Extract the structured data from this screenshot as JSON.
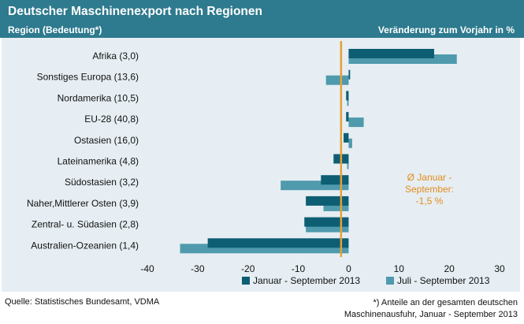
{
  "chart_data": {
    "type": "bar",
    "orientation": "horizontal",
    "title": "Deutscher Maschinenexport nach Regionen",
    "subtitle_left": "Region (Bedeutung*)",
    "subtitle_right": "Veränderung  zum Vorjahr in %",
    "categories": [
      "Afrika  (3,0)",
      "Sonstiges Europa  (13,6)",
      "Nordamerika  (10,5)",
      "EU-28  (40,8)",
      "Ostasien  (16,0)",
      "Lateinamerika  (4,8)",
      "Südostasien  (3,2)",
      "Naher,Mittlerer Osten  (3,9)",
      "Zentral- u. Südasien  (2,8)",
      "Australien-Ozeanien  (1,4)"
    ],
    "series": [
      {
        "name": "Januar - September 2013",
        "color": "#0e5e73",
        "values": [
          17.0,
          0.3,
          -0.5,
          -0.5,
          -1.0,
          -3.0,
          -5.5,
          -8.5,
          -8.8,
          -28.0
        ]
      },
      {
        "name": "Juli - September 2013",
        "color": "#4f9aac",
        "values": [
          21.5,
          -4.5,
          -0.3,
          3.0,
          0.7,
          -0.3,
          -13.5,
          -5.0,
          -8.5,
          -33.5
        ]
      }
    ],
    "xlim": [
      -40,
      30
    ],
    "xticks": [
      "-40",
      "-30",
      "-20",
      "-10",
      "0",
      "10",
      "20",
      "30"
    ],
    "reference_line": {
      "value": -1.5,
      "color": "#e8a033"
    },
    "annotation": [
      "Ø Januar -",
      "September:",
      "-1,5 %"
    ],
    "annotation_color": "#e38c1a",
    "legend": "bottom"
  },
  "source": "Quelle: Statistisches Bundesamt, VDMA",
  "footnote_line1": "*) Anteile an der gesamten deutschen",
  "footnote_line2": "Maschinenausfuhr, Januar - September 2013",
  "colors": {
    "header_bg": "#2e7a8e",
    "chart_bg": "#e6eef3"
  }
}
